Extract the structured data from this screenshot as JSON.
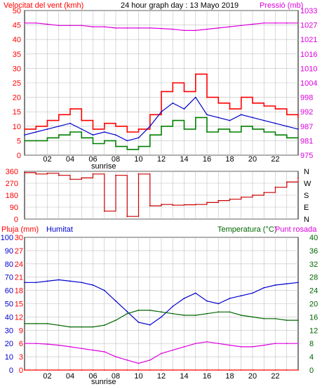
{
  "chart_data": [
    {
      "type": "line",
      "panel": "wind-pressure",
      "title": "24 hour graph day : 13 Mayo 2019",
      "left_axis_label": "Velocitat del vent (kmh)",
      "right_axis_label": "Pressió (mb)",
      "y_left_ticks": [
        "50",
        "45",
        "40",
        "35",
        "30",
        "25",
        "20",
        "15",
        "10",
        "5",
        "0"
      ],
      "y_right_ticks": [
        "1033",
        "1027",
        "1021",
        "1016",
        "1010",
        "1004",
        "998",
        "992",
        "987",
        "981",
        "975"
      ],
      "ylim_left": [
        0,
        50
      ],
      "ylim_right": [
        975,
        1033
      ],
      "x": [
        0,
        1,
        2,
        3,
        4,
        5,
        6,
        7,
        8,
        9,
        10,
        11,
        12,
        13,
        14,
        15,
        16,
        17,
        18,
        19,
        20,
        21,
        22,
        23,
        24
      ],
      "series": [
        {
          "name": "Velocitat del vent (kmh)",
          "color": "#ff0000",
          "values": [
            9,
            10,
            12,
            14,
            16,
            12,
            9,
            11,
            10,
            8,
            9,
            14,
            22,
            25,
            22,
            28,
            20,
            18,
            16,
            20,
            18,
            17,
            16,
            14,
            13
          ]
        },
        {
          "name": "",
          "color": "#0000cc",
          "values": [
            7,
            8,
            9,
            10,
            11,
            9,
            7,
            8,
            7,
            5,
            6,
            10,
            15,
            18,
            16,
            20,
            14,
            13,
            12,
            14,
            13,
            12,
            11,
            10,
            9
          ]
        },
        {
          "name": "",
          "color": "#008000",
          "values": [
            5,
            5,
            6,
            7,
            8,
            6,
            4,
            5,
            3,
            2,
            3,
            7,
            10,
            12,
            9,
            13,
            8,
            9,
            8,
            10,
            9,
            8,
            7,
            6,
            6
          ]
        },
        {
          "name": "Pressió (mb)",
          "color": "#dd00dd",
          "axis": "right",
          "values": [
            1028,
            1028,
            1027.5,
            1027,
            1027,
            1027,
            1026.5,
            1026.5,
            1026,
            1026,
            1026,
            1026,
            1025.8,
            1025.5,
            1025,
            1025,
            1025.5,
            1026,
            1026.5,
            1027,
            1027.5,
            1028,
            1028,
            1028,
            1028
          ]
        }
      ],
      "x_tick_labels": [
        "02",
        "04",
        "06",
        "08",
        "10",
        "12",
        "14",
        "16",
        "18",
        "20",
        "22"
      ],
      "annotation": "sunrise"
    },
    {
      "type": "line",
      "panel": "wind-direction",
      "y_left_ticks": [
        "360",
        "270",
        "180",
        "90",
        "0"
      ],
      "y_right_ticks": [
        "N",
        "W",
        "S",
        "E",
        "N"
      ],
      "ylim": [
        0,
        360
      ],
      "series": [
        {
          "name": "",
          "color": "#cc0000",
          "values": [
            350,
            340,
            345,
            330,
            300,
            310,
            340,
            60,
            330,
            20,
            340,
            100,
            110,
            105,
            108,
            110,
            125,
            140,
            150,
            165,
            180,
            200,
            240,
            280,
            310
          ]
        }
      ],
      "x_tick_labels": []
    },
    {
      "type": "line",
      "panel": "humidity-temp",
      "left_axis_label_1": "Pluja (mm)",
      "left_axis_label_2": "Humitat",
      "right_axis_label_1": "Temperatura (°C)",
      "right_axis_label_2": "Punt rosada",
      "y_left_ticks_rain": [
        "30",
        "27",
        "24",
        "21",
        "18",
        "15",
        "12",
        "9",
        "6",
        "3",
        "0"
      ],
      "y_left_ticks_hum": [
        "100",
        "90",
        "80",
        "70",
        "60",
        "50",
        "40",
        "30",
        "20",
        "10",
        "0"
      ],
      "y_right_ticks": [
        "40",
        "36",
        "32",
        "28",
        "24",
        "20",
        "16",
        "12",
        "8",
        "4",
        "0"
      ],
      "series": [
        {
          "name": "Humitat",
          "color": "#0000cc",
          "values": [
            66,
            66,
            67,
            68,
            67,
            66,
            64,
            60,
            52,
            44,
            36,
            34,
            40,
            48,
            54,
            58,
            52,
            50,
            54,
            56,
            58,
            62,
            64,
            65,
            66
          ]
        },
        {
          "name": "Temperatura (°C)",
          "color": "#006600",
          "axis": "right",
          "values": [
            14,
            14,
            14,
            13.5,
            13,
            13,
            13,
            13.5,
            15,
            17,
            18,
            18,
            17.5,
            17,
            16.5,
            16.5,
            17,
            17.5,
            17.5,
            16.5,
            16,
            15.5,
            15.5,
            15,
            15
          ]
        },
        {
          "name": "Punt rosada",
          "color": "#dd00dd",
          "axis": "right",
          "values": [
            8,
            8,
            7.8,
            7.5,
            7,
            6.5,
            6,
            5.5,
            4,
            3,
            2,
            3,
            5,
            6,
            7,
            8,
            8.5,
            8,
            7.5,
            7,
            7,
            7.5,
            8,
            8,
            8
          ]
        },
        {
          "name": "Pluja (mm)",
          "color": "#ff0000",
          "values": [
            0,
            0,
            0,
            0,
            0,
            0,
            0,
            0,
            0,
            0,
            0,
            0,
            0,
            0,
            0,
            0,
            0,
            0,
            0,
            0,
            0,
            0,
            0,
            0,
            0
          ]
        }
      ],
      "x_tick_labels": [
        "02",
        "04",
        "06",
        "08",
        "10",
        "12",
        "14",
        "16",
        "18",
        "20",
        "22"
      ],
      "annotation": "sunrise"
    }
  ]
}
